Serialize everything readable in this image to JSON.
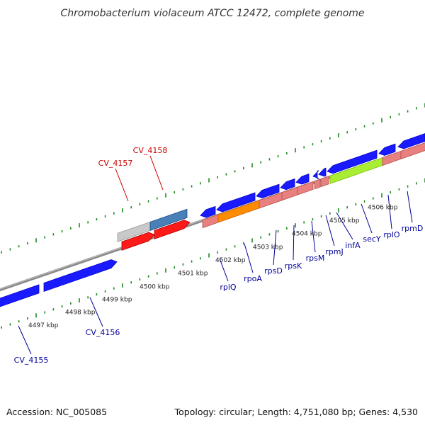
{
  "title": "Chromobacterium violaceum ATCC 12472, complete genome",
  "footer": {
    "accession": "Accession: NC_005085",
    "summary": "Topology: circular; Length: 4,751,080 bp; Genes: 4,530"
  },
  "scale": {
    "tick_labels": [
      "4497 kbp",
      "4498 kbp",
      "4499 kbp",
      "4500 kbp",
      "4501 kbp",
      "4502 kbp",
      "4503 kbp",
      "4504 kbp",
      "4505 kbp",
      "4506 kbp"
    ]
  },
  "genes": [
    {
      "name": "CV_4155",
      "color": "#1a1aff"
    },
    {
      "name": "CV_4156",
      "color": "#1a1aff"
    },
    {
      "name": "CV_4157",
      "color": "#c9c9c9"
    },
    {
      "name": "CV_4158",
      "color": "#4a80b8"
    },
    {
      "name": "rplQ",
      "color": "#1a1aff"
    },
    {
      "name": "rpoA",
      "color": "#ff8c00"
    },
    {
      "name": "rpsD",
      "color": "#e88080"
    },
    {
      "name": "rpsK",
      "color": "#e88080"
    },
    {
      "name": "rpsM",
      "color": "#e88080"
    },
    {
      "name": "rpmJ",
      "color": "#e88080"
    },
    {
      "name": "infA",
      "color": "#1a1aff"
    },
    {
      "name": "secY",
      "color": "#aaee33"
    },
    {
      "name": "rplO",
      "color": "#e88080"
    },
    {
      "name": "rpmD",
      "color": "#e88080"
    }
  ],
  "colors": {
    "backbone": "#888888",
    "tick": "#1f8a1f",
    "label_forward": "#cc0000",
    "label_reverse": "#000099",
    "rna_red": "#ff1a1a"
  }
}
